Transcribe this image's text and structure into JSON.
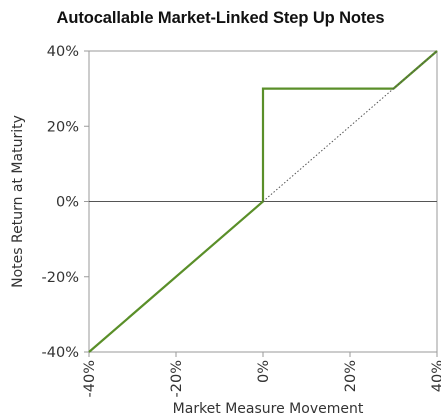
{
  "chart_data": {
    "type": "line",
    "title": "Autocallable Market-Linked Step Up Notes",
    "xlabel": "Market Measure Movement",
    "ylabel": "Notes Return at Maturity",
    "xlim": [
      -40,
      40
    ],
    "ylim": [
      -40,
      40
    ],
    "x_ticks": [
      -40,
      -20,
      0,
      20,
      40
    ],
    "y_ticks": [
      -40,
      -20,
      0,
      20,
      40
    ],
    "x_tick_labels": [
      "-40%",
      "-20%",
      "0%",
      "20%",
      "40%"
    ],
    "y_tick_labels": [
      "-40%",
      "-20%",
      "0%",
      "20%",
      "40%"
    ],
    "grid": false,
    "zero_line": true,
    "series": [
      {
        "style": "solid",
        "color": "#5a8f29",
        "points": [
          [
            -40,
            -40
          ],
          [
            0,
            0
          ],
          [
            0,
            30
          ],
          [
            30,
            30
          ],
          [
            40,
            40
          ]
        ]
      },
      {
        "style": "dotted",
        "color": "#555555",
        "points": [
          [
            0,
            0
          ],
          [
            40,
            40
          ]
        ]
      }
    ]
  }
}
